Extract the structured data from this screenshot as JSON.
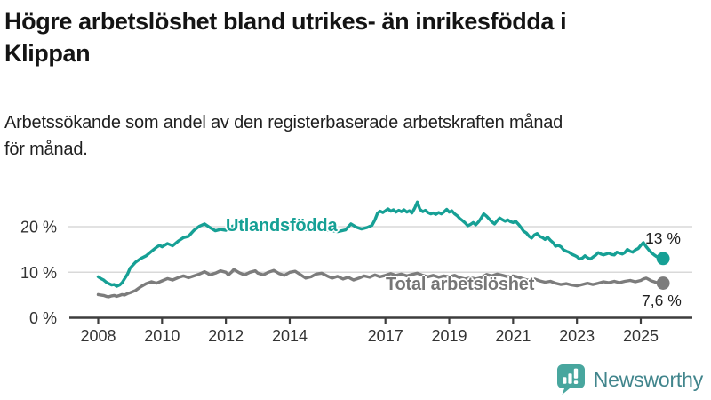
{
  "header": {
    "title_lines": [
      "Högre arbetslöshet bland utrikes- än inrikesfödda i",
      "Klippan"
    ],
    "subtitle_lines": [
      "Arbetssökande som andel av den registerbaserade arbetskraften månad",
      "för månad."
    ]
  },
  "chart_data": {
    "type": "line",
    "title": "Högre arbetslöshet bland utrikes- än inrikesfödda i Klippan",
    "subtitle": "Arbetssökande som andel av den registerbaserade arbetskraften månad för månad.",
    "unit": "%",
    "grid": "horizontal",
    "x_axis": {
      "tick_values": [
        2008,
        2010,
        2012,
        2014,
        2017,
        2019,
        2021,
        2023,
        2025
      ],
      "tick_labels": [
        "2008",
        "2010",
        "2012",
        "2014",
        "2017",
        "2019",
        "2021",
        "2023",
        "2025"
      ],
      "range": [
        2007.1,
        2026.6
      ]
    },
    "y_axis": {
      "tick_values": [
        0,
        10,
        20
      ],
      "tick_labels": [
        "0 %",
        "10 %",
        "20 %"
      ],
      "range": [
        0,
        27.8
      ]
    },
    "colors": {
      "axis": "#3d3d3d",
      "gridline": "#d9d9d9",
      "tick_text": "#333333"
    },
    "series": [
      {
        "name": "Utlandsfödda",
        "color": "#16a095",
        "end_label": "13 %",
        "end_value": 13,
        "points": [
          [
            2008.0,
            9.0
          ],
          [
            2008.08,
            8.6
          ],
          [
            2008.17,
            8.3
          ],
          [
            2008.25,
            7.8
          ],
          [
            2008.33,
            7.5
          ],
          [
            2008.42,
            7.2
          ],
          [
            2008.5,
            7.3
          ],
          [
            2008.58,
            6.9
          ],
          [
            2008.67,
            7.2
          ],
          [
            2008.75,
            7.7
          ],
          [
            2008.83,
            8.6
          ],
          [
            2008.92,
            9.6
          ],
          [
            2009.0,
            10.9
          ],
          [
            2009.17,
            12.2
          ],
          [
            2009.33,
            13.0
          ],
          [
            2009.5,
            13.6
          ],
          [
            2009.67,
            14.6
          ],
          [
            2009.83,
            15.5
          ],
          [
            2009.92,
            15.9
          ],
          [
            2010.0,
            15.6
          ],
          [
            2010.17,
            16.3
          ],
          [
            2010.33,
            15.8
          ],
          [
            2010.5,
            16.8
          ],
          [
            2010.67,
            17.6
          ],
          [
            2010.83,
            17.9
          ],
          [
            2011.0,
            19.2
          ],
          [
            2011.17,
            20.1
          ],
          [
            2011.33,
            20.6
          ],
          [
            2011.5,
            19.8
          ],
          [
            2011.67,
            19.1
          ],
          [
            2011.83,
            19.4
          ],
          [
            2012.0,
            19.2
          ],
          [
            2012.17,
            20.0
          ],
          [
            2012.33,
            20.4
          ],
          [
            2012.5,
            20.1
          ],
          [
            2012.67,
            19.7
          ],
          [
            2012.83,
            19.9
          ],
          [
            2013.0,
            19.6
          ],
          [
            2013.25,
            19.9
          ],
          [
            2013.5,
            19.5
          ],
          [
            2013.75,
            19.8
          ],
          [
            2014.0,
            20.0
          ],
          [
            2014.25,
            19.6
          ],
          [
            2014.5,
            19.4
          ],
          [
            2014.75,
            19.7
          ],
          [
            2015.0,
            19.5
          ],
          [
            2015.25,
            19.2
          ],
          [
            2015.5,
            18.9
          ],
          [
            2015.75,
            19.3
          ],
          [
            2015.92,
            20.6
          ],
          [
            2016.08,
            19.9
          ],
          [
            2016.25,
            19.5
          ],
          [
            2016.42,
            19.8
          ],
          [
            2016.58,
            20.3
          ],
          [
            2016.67,
            21.5
          ],
          [
            2016.75,
            22.9
          ],
          [
            2016.83,
            23.4
          ],
          [
            2016.92,
            23.1
          ],
          [
            2017.0,
            23.5
          ],
          [
            2017.08,
            23.9
          ],
          [
            2017.17,
            23.4
          ],
          [
            2017.25,
            23.7
          ],
          [
            2017.33,
            23.2
          ],
          [
            2017.42,
            23.6
          ],
          [
            2017.5,
            23.3
          ],
          [
            2017.58,
            23.7
          ],
          [
            2017.67,
            23.2
          ],
          [
            2017.75,
            23.5
          ],
          [
            2017.83,
            23.0
          ],
          [
            2017.92,
            24.1
          ],
          [
            2018.0,
            25.4
          ],
          [
            2018.08,
            23.8
          ],
          [
            2018.17,
            23.3
          ],
          [
            2018.25,
            23.6
          ],
          [
            2018.33,
            23.1
          ],
          [
            2018.42,
            22.8
          ],
          [
            2018.5,
            23.0
          ],
          [
            2018.58,
            22.7
          ],
          [
            2018.67,
            23.1
          ],
          [
            2018.75,
            22.8
          ],
          [
            2018.83,
            23.2
          ],
          [
            2018.92,
            23.8
          ],
          [
            2019.0,
            23.2
          ],
          [
            2019.08,
            23.5
          ],
          [
            2019.17,
            22.8
          ],
          [
            2019.25,
            22.4
          ],
          [
            2019.33,
            21.8
          ],
          [
            2019.42,
            21.3
          ],
          [
            2019.5,
            20.8
          ],
          [
            2019.58,
            20.2
          ],
          [
            2019.67,
            20.5
          ],
          [
            2019.75,
            20.9
          ],
          [
            2019.83,
            20.4
          ],
          [
            2019.92,
            21.1
          ],
          [
            2020.0,
            21.9
          ],
          [
            2020.08,
            22.8
          ],
          [
            2020.17,
            22.3
          ],
          [
            2020.25,
            21.7
          ],
          [
            2020.33,
            21.1
          ],
          [
            2020.42,
            20.6
          ],
          [
            2020.5,
            21.3
          ],
          [
            2020.58,
            21.9
          ],
          [
            2020.67,
            21.5
          ],
          [
            2020.75,
            21.2
          ],
          [
            2020.83,
            21.5
          ],
          [
            2020.92,
            21.1
          ],
          [
            2021.0,
            20.9
          ],
          [
            2021.08,
            21.2
          ],
          [
            2021.17,
            20.5
          ],
          [
            2021.25,
            19.8
          ],
          [
            2021.33,
            19.0
          ],
          [
            2021.42,
            18.6
          ],
          [
            2021.5,
            17.9
          ],
          [
            2021.58,
            17.5
          ],
          [
            2021.67,
            18.2
          ],
          [
            2021.75,
            18.5
          ],
          [
            2021.83,
            17.9
          ],
          [
            2021.92,
            17.6
          ],
          [
            2022.0,
            17.2
          ],
          [
            2022.08,
            17.7
          ],
          [
            2022.17,
            17.0
          ],
          [
            2022.25,
            16.5
          ],
          [
            2022.33,
            15.7
          ],
          [
            2022.42,
            15.9
          ],
          [
            2022.5,
            15.6
          ],
          [
            2022.58,
            14.9
          ],
          [
            2022.67,
            14.6
          ],
          [
            2022.75,
            14.4
          ],
          [
            2022.83,
            14.0
          ],
          [
            2022.92,
            13.7
          ],
          [
            2023.0,
            13.4
          ],
          [
            2023.08,
            12.9
          ],
          [
            2023.17,
            13.1
          ],
          [
            2023.25,
            13.6
          ],
          [
            2023.33,
            13.2
          ],
          [
            2023.42,
            12.9
          ],
          [
            2023.5,
            13.3
          ],
          [
            2023.58,
            13.7
          ],
          [
            2023.67,
            14.3
          ],
          [
            2023.75,
            14.0
          ],
          [
            2023.83,
            13.8
          ],
          [
            2023.92,
            14.0
          ],
          [
            2024.0,
            14.2
          ],
          [
            2024.08,
            13.9
          ],
          [
            2024.17,
            13.8
          ],
          [
            2024.25,
            14.4
          ],
          [
            2024.33,
            14.2
          ],
          [
            2024.42,
            14.0
          ],
          [
            2024.5,
            14.3
          ],
          [
            2024.58,
            15.0
          ],
          [
            2024.67,
            14.6
          ],
          [
            2024.75,
            14.4
          ],
          [
            2024.83,
            14.9
          ],
          [
            2024.92,
            15.2
          ],
          [
            2025.0,
            15.9
          ],
          [
            2025.08,
            16.5
          ],
          [
            2025.17,
            15.6
          ],
          [
            2025.25,
            14.9
          ],
          [
            2025.33,
            14.3
          ],
          [
            2025.42,
            13.8
          ],
          [
            2025.5,
            13.4
          ],
          [
            2025.58,
            13.2
          ],
          [
            2025.7,
            13.0
          ]
        ]
      },
      {
        "name": "Total arbetslöshet",
        "color": "#7c7c7c",
        "end_label": "7,6 %",
        "end_value": 7.6,
        "points": [
          [
            2008.0,
            5.1
          ],
          [
            2008.08,
            5.0
          ],
          [
            2008.17,
            4.9
          ],
          [
            2008.25,
            4.7
          ],
          [
            2008.33,
            4.6
          ],
          [
            2008.42,
            4.8
          ],
          [
            2008.5,
            4.9
          ],
          [
            2008.58,
            4.7
          ],
          [
            2008.67,
            4.9
          ],
          [
            2008.75,
            5.1
          ],
          [
            2008.83,
            5.0
          ],
          [
            2008.92,
            5.3
          ],
          [
            2009.0,
            5.5
          ],
          [
            2009.17,
            6.0
          ],
          [
            2009.33,
            6.8
          ],
          [
            2009.5,
            7.5
          ],
          [
            2009.67,
            7.9
          ],
          [
            2009.83,
            7.6
          ],
          [
            2010.0,
            8.1
          ],
          [
            2010.17,
            8.6
          ],
          [
            2010.33,
            8.3
          ],
          [
            2010.5,
            8.8
          ],
          [
            2010.67,
            9.2
          ],
          [
            2010.83,
            8.8
          ],
          [
            2011.0,
            9.2
          ],
          [
            2011.17,
            9.6
          ],
          [
            2011.33,
            10.1
          ],
          [
            2011.42,
            9.8
          ],
          [
            2011.5,
            9.4
          ],
          [
            2011.67,
            9.8
          ],
          [
            2011.83,
            10.3
          ],
          [
            2012.0,
            10.0
          ],
          [
            2012.08,
            9.4
          ],
          [
            2012.17,
            10.0
          ],
          [
            2012.25,
            10.6
          ],
          [
            2012.42,
            9.9
          ],
          [
            2012.58,
            9.4
          ],
          [
            2012.75,
            10.0
          ],
          [
            2012.92,
            10.3
          ],
          [
            2013.0,
            9.8
          ],
          [
            2013.17,
            9.4
          ],
          [
            2013.33,
            10.0
          ],
          [
            2013.5,
            10.4
          ],
          [
            2013.67,
            9.7
          ],
          [
            2013.83,
            9.3
          ],
          [
            2014.0,
            10.0
          ],
          [
            2014.17,
            10.2
          ],
          [
            2014.33,
            9.5
          ],
          [
            2014.5,
            8.7
          ],
          [
            2014.67,
            9.0
          ],
          [
            2014.83,
            9.6
          ],
          [
            2015.0,
            9.8
          ],
          [
            2015.17,
            9.2
          ],
          [
            2015.33,
            8.7
          ],
          [
            2015.5,
            9.1
          ],
          [
            2015.67,
            8.5
          ],
          [
            2015.83,
            8.9
          ],
          [
            2016.0,
            8.3
          ],
          [
            2016.17,
            8.7
          ],
          [
            2016.33,
            9.2
          ],
          [
            2016.5,
            8.9
          ],
          [
            2016.67,
            9.4
          ],
          [
            2016.83,
            9.0
          ],
          [
            2017.0,
            9.3
          ],
          [
            2017.17,
            9.7
          ],
          [
            2017.33,
            9.3
          ],
          [
            2017.5,
            9.6
          ],
          [
            2017.67,
            9.2
          ],
          [
            2017.83,
            9.5
          ],
          [
            2018.0,
            9.8
          ],
          [
            2018.17,
            9.3
          ],
          [
            2018.33,
            9.0
          ],
          [
            2018.5,
            9.3
          ],
          [
            2018.67,
            8.9
          ],
          [
            2018.83,
            9.2
          ],
          [
            2019.0,
            9.0
          ],
          [
            2019.17,
            9.3
          ],
          [
            2019.33,
            8.8
          ],
          [
            2019.5,
            8.5
          ],
          [
            2019.67,
            8.8
          ],
          [
            2019.83,
            8.5
          ],
          [
            2020.0,
            8.8
          ],
          [
            2020.17,
            9.5
          ],
          [
            2020.33,
            9.2
          ],
          [
            2020.5,
            9.6
          ],
          [
            2020.67,
            9.3
          ],
          [
            2020.83,
            9.0
          ],
          [
            2021.0,
            9.2
          ],
          [
            2021.17,
            8.9
          ],
          [
            2021.33,
            8.5
          ],
          [
            2021.5,
            8.2
          ],
          [
            2021.67,
            8.5
          ],
          [
            2021.83,
            8.1
          ],
          [
            2022.0,
            7.8
          ],
          [
            2022.17,
            8.0
          ],
          [
            2022.33,
            7.6
          ],
          [
            2022.5,
            7.3
          ],
          [
            2022.67,
            7.5
          ],
          [
            2022.83,
            7.2
          ],
          [
            2023.0,
            7.0
          ],
          [
            2023.17,
            7.3
          ],
          [
            2023.33,
            7.6
          ],
          [
            2023.5,
            7.3
          ],
          [
            2023.67,
            7.6
          ],
          [
            2023.83,
            7.9
          ],
          [
            2024.0,
            7.7
          ],
          [
            2024.17,
            8.0
          ],
          [
            2024.33,
            7.7
          ],
          [
            2024.5,
            8.0
          ],
          [
            2024.67,
            8.2
          ],
          [
            2024.83,
            7.9
          ],
          [
            2025.0,
            8.2
          ],
          [
            2025.08,
            8.5
          ],
          [
            2025.17,
            8.7
          ],
          [
            2025.25,
            8.4
          ],
          [
            2025.33,
            8.1
          ],
          [
            2025.42,
            7.9
          ],
          [
            2025.5,
            7.7
          ],
          [
            2025.7,
            7.6
          ]
        ]
      }
    ]
  },
  "logo": {
    "text": "Newsworthy",
    "icon": "newsworthy-bar-chart-speech-bubble",
    "icon_color": "#48a69e",
    "text_color": "#41858c"
  }
}
